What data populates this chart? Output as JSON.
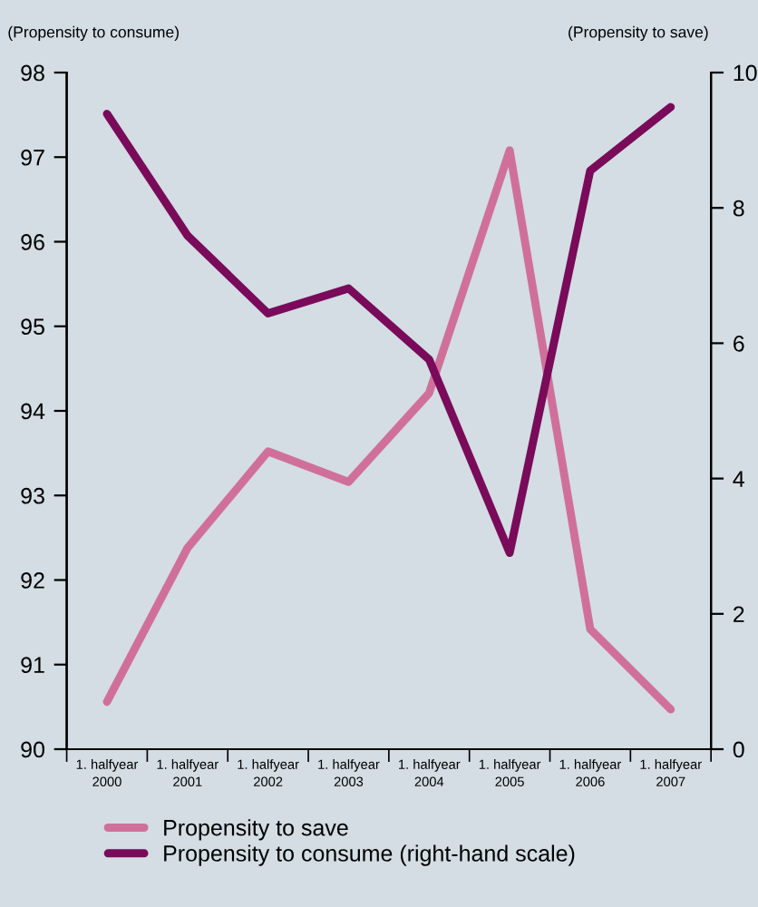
{
  "chart_data": {
    "type": "line",
    "ylabel": "(Propensity to consume)",
    "y2label": "(Propensity to save)",
    "categories": [
      "1. halfyear\n2000",
      "1. halfyear\n2001",
      "1. halfyear\n2002",
      "1. halfyear\n2003",
      "1. halfyear\n2004",
      "1. halfyear\n2005",
      "1. halfyear\n2006",
      "1. halfyear\n2007"
    ],
    "series": [
      {
        "name": "Propensity to save",
        "color": "#d0709a",
        "values": [
          90.56,
          92.38,
          93.52,
          93.16,
          94.21,
          97.08,
          91.42,
          90.47
        ]
      },
      {
        "name": "Propensity to consume (right-hand scale)",
        "color": "#7a0a5a",
        "axis": "y2",
        "values": [
          9.39,
          7.59,
          6.44,
          6.81,
          5.76,
          2.9,
          8.55,
          9.49
        ]
      }
    ],
    "ylim": [
      90,
      98
    ],
    "yticks": [
      90,
      91,
      92,
      93,
      94,
      95,
      96,
      97,
      98
    ],
    "y2lim": [
      0,
      10
    ],
    "y2ticks": [
      0,
      2,
      4,
      6,
      8,
      10
    ],
    "grid": false,
    "legend": "bottom",
    "marker": "none",
    "line_style": "solid"
  }
}
